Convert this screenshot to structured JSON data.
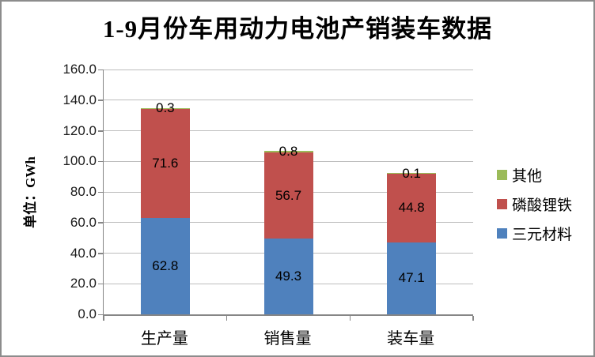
{
  "title": "1-9月份车用动力电池产销装车数据",
  "frame": {
    "background": "#FFFFFF",
    "border_color": "#8C8C8C"
  },
  "axis_color": "#868686",
  "gridline_color": "#BDBDBD",
  "chart_data": {
    "type": "bar",
    "stacked": true,
    "title": "1-9月份车用动力电池产销装车数据",
    "xlabel": "",
    "ylabel": "单位：GWh",
    "ylim": [
      0,
      160
    ],
    "ytick_step": 20,
    "y_tick_labels": [
      "0.0",
      "20.0",
      "40.0",
      "60.0",
      "80.0",
      "100.0",
      "120.0",
      "140.0",
      "160.0"
    ],
    "grid": true,
    "data_labels": true,
    "legend_position": "right",
    "categories": [
      "生产量",
      "销售量",
      "装车量"
    ],
    "series": [
      {
        "name": "三元材料",
        "color": "#4F81BD",
        "values": [
          62.8,
          49.3,
          47.1
        ]
      },
      {
        "name": "磷酸锂铁",
        "color": "#C0504D",
        "values": [
          71.6,
          56.7,
          44.8
        ]
      },
      {
        "name": "其他",
        "color": "#9BBB59",
        "values": [
          0.3,
          0.8,
          0.1
        ]
      }
    ],
    "totals": [
      134.7,
      106.8,
      92.0
    ]
  }
}
